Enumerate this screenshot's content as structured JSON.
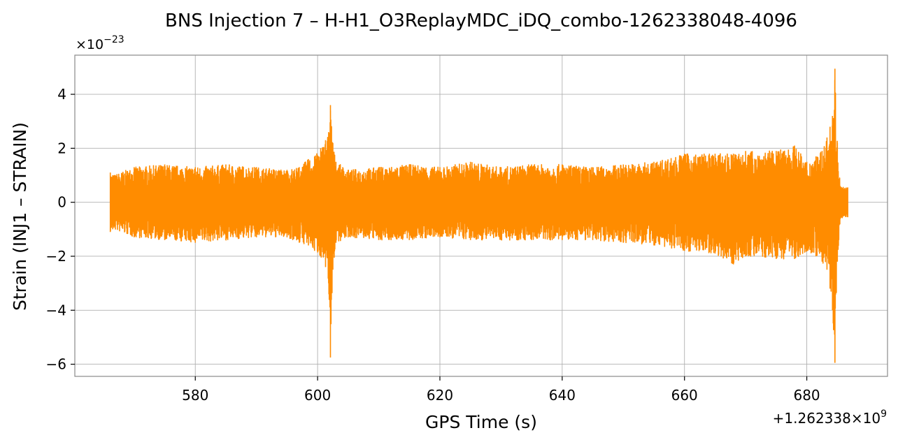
{
  "chart_data": {
    "type": "line",
    "title": "BNS Injection 7 – H-H1_O3ReplayMDC_iDQ_combo-1262338048-4096",
    "xlabel": "GPS Time (s)",
    "ylabel": "Strain (INJ1 – STRAIN)",
    "x_offset_label": "+1.262338×10",
    "x_offset_exp": "9",
    "y_multiplier_label": "×10",
    "y_multiplier_exp": "−23",
    "xlim": [
      560.3,
      693.2
    ],
    "ylim": [
      -6.45,
      5.45
    ],
    "grid": true,
    "line_color": "#ff8c00",
    "x_ticks": [
      {
        "value": 580,
        "label": "580"
      },
      {
        "value": 600,
        "label": "600"
      },
      {
        "value": 620,
        "label": "620"
      },
      {
        "value": 640,
        "label": "640"
      },
      {
        "value": 660,
        "label": "660"
      },
      {
        "value": 680,
        "label": "680"
      }
    ],
    "y_ticks": [
      {
        "value": 4,
        "label": "4"
      },
      {
        "value": 2,
        "label": "2"
      },
      {
        "value": 0,
        "label": "0"
      },
      {
        "value": -2,
        "label": "−2"
      },
      {
        "value": -4,
        "label": "−4"
      },
      {
        "value": -6,
        "label": "−6"
      }
    ],
    "series": [
      {
        "envelope": {
          "x": [
            566.1,
            566.5,
            570,
            575,
            580,
            585,
            590,
            595,
            597,
            598.5,
            599.5,
            600.5,
            601.3,
            601.8,
            602.1,
            602.5,
            603,
            605,
            610,
            615,
            620,
            625,
            630,
            635,
            640,
            645,
            650,
            655,
            660,
            665,
            668,
            670,
            675,
            678,
            680,
            681.5,
            682.5,
            683.3,
            683.8,
            684.2,
            684.6,
            685,
            685.5,
            686.7
          ],
          "upper": [
            1.1,
            1.0,
            1.3,
            1.4,
            1.3,
            1.4,
            1.3,
            1.2,
            1.3,
            1.6,
            1.7,
            2.0,
            2.3,
            2.6,
            3.6,
            2.2,
            1.5,
            1.2,
            1.3,
            1.4,
            1.3,
            1.5,
            1.3,
            1.4,
            1.4,
            1.3,
            1.4,
            1.5,
            1.8,
            1.8,
            1.8,
            1.9,
            1.9,
            2.1,
            1.5,
            1.7,
            1.9,
            2.4,
            2.8,
            3.2,
            4.95,
            2.2,
            0.6,
            0.55
          ],
          "lower": [
            -1.1,
            -1.0,
            -1.3,
            -1.4,
            -1.5,
            -1.4,
            -1.3,
            -1.3,
            -1.5,
            -1.6,
            -1.8,
            -2.0,
            -2.4,
            -3.0,
            -5.75,
            -2.5,
            -1.5,
            -1.3,
            -1.4,
            -1.4,
            -1.3,
            -1.4,
            -1.4,
            -1.4,
            -1.4,
            -1.4,
            -1.5,
            -1.6,
            -1.8,
            -1.9,
            -2.3,
            -2.0,
            -2.1,
            -2.1,
            -1.8,
            -2.0,
            -2.2,
            -2.5,
            -3.2,
            -4.0,
            -5.95,
            -2.2,
            -0.6,
            -0.55
          ]
        }
      }
    ]
  }
}
